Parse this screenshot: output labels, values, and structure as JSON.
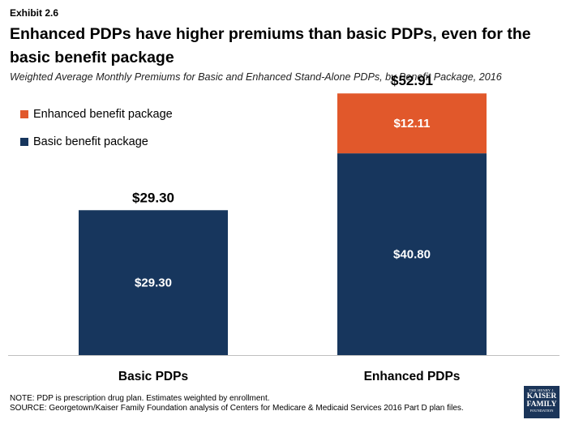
{
  "exhibit": "Exhibit 2.6",
  "title": "Enhanced PDPs have higher premiums than basic PDPs, even for the basic benefit package",
  "subtitle": "Weighted Average Monthly Premiums for Basic and Enhanced Stand-Alone PDPs, by Benefit Package, 2016",
  "colors": {
    "basic": "#17365d",
    "enhanced": "#e1582b"
  },
  "chart_data": {
    "type": "bar",
    "stacked": true,
    "categories": [
      "Basic PDPs",
      "Enhanced PDPs"
    ],
    "series": [
      {
        "name": "Basic benefit package",
        "values": [
          29.3,
          40.8
        ],
        "labels": [
          "$29.30",
          "$40.80"
        ]
      },
      {
        "name": "Enhanced benefit package",
        "values": [
          null,
          12.11
        ],
        "labels": [
          "",
          "$12.11"
        ]
      }
    ],
    "totals": [
      29.3,
      52.91
    ],
    "total_labels": [
      "$29.30",
      "$52.91"
    ],
    "ylim": [
      0,
      60
    ],
    "grid": false,
    "legend_position": "top-left"
  },
  "legend": [
    {
      "label": "Enhanced benefit package",
      "color_key": "enhanced"
    },
    {
      "label": "Basic benefit package",
      "color_key": "basic"
    }
  ],
  "notes": [
    "NOTE: PDP is prescription drug plan. Estimates weighted by enrollment.",
    "SOURCE: Georgetown/Kaiser Family Foundation analysis of Centers for Medicare & Medicaid Services 2016 Part D plan files."
  ],
  "logo": {
    "line1": "THE HENRY J.",
    "line2": "KAISER",
    "line3": "FAMILY",
    "line4": "FOUNDATION"
  }
}
